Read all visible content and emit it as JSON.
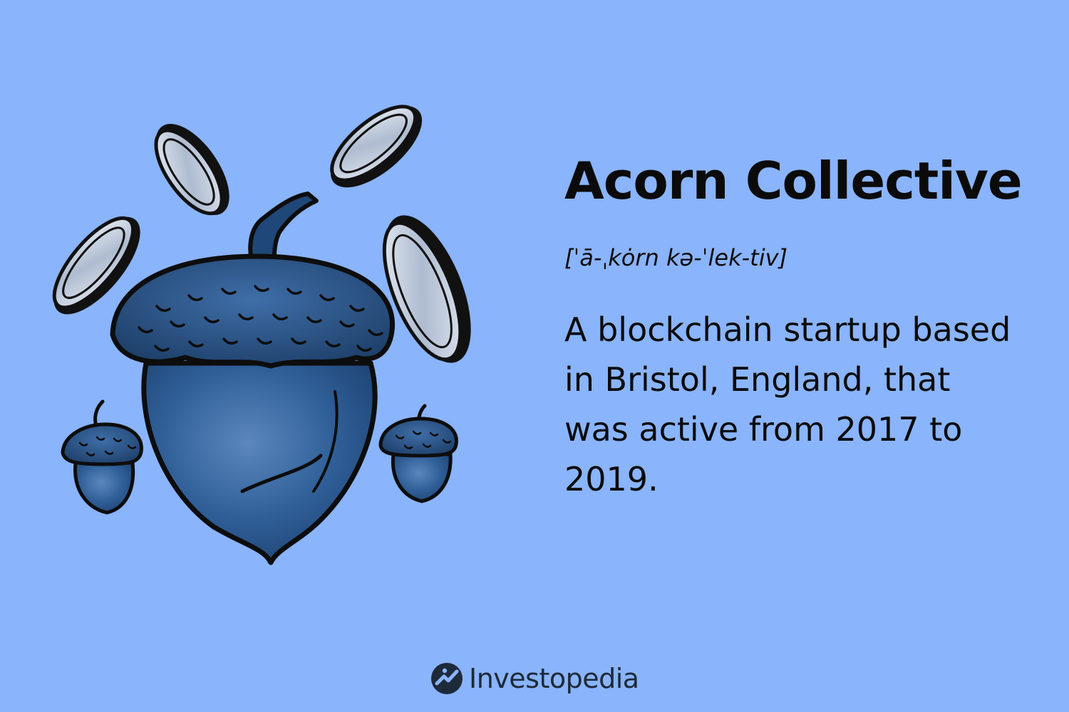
{
  "colors": {
    "background": "#8ab4fb",
    "acorn": "#2f5e97",
    "outline": "#0d0d0d",
    "coin": "#c8d2e3",
    "logo_text": "#1d2a3a"
  },
  "illustration": {
    "icon": "acorn-with-coins-icon"
  },
  "term": {
    "title": "Acorn Collective",
    "pronunciation": "[ˈā-ˌkȯrn kə-ˈlek-tiv]",
    "definition": "A blockchain startup based in Bristol, England, that was active from 2017 to 2019."
  },
  "footer": {
    "brand": "Investopedia",
    "icon": "investopedia-logo-icon"
  }
}
